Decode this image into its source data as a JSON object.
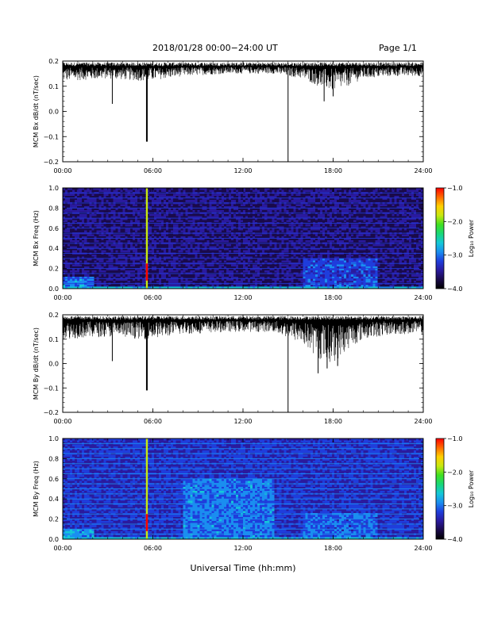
{
  "header": {
    "title": "2018/01/28  00:00−24:00 UT",
    "page": "Page 1/1"
  },
  "footer": {
    "xlabel": "Universal Time (hh:mm)"
  },
  "colors": {
    "trace": "#000000",
    "colormap": [
      "#000000",
      "#1a0a4a",
      "#2a1a9e",
      "#1f3ddc",
      "#1a8ef0",
      "#14c8d8",
      "#18d878",
      "#40e020",
      "#c8e810",
      "#ffd000",
      "#ff6a00",
      "#ff0000"
    ]
  },
  "chart_data": [
    {
      "type": "line",
      "ylabel": "MCM Bx dB/dt (nT/sec)",
      "ylim": [
        -0.2,
        0.2
      ],
      "yticks": [
        "0.2",
        "0.1",
        "0.0",
        "−0.1",
        "−0.2"
      ],
      "ytick_values": [
        0.2,
        0.1,
        0.0,
        -0.1,
        -0.2
      ],
      "xlim": [
        0,
        24
      ],
      "xticks": [
        "00:00",
        "06:00",
        "12:00",
        "18:00",
        "24:00"
      ],
      "baseline": 0.18,
      "noise_envelope": [
        {
          "x": 0,
          "low": 0.12
        },
        {
          "x": 3,
          "low": 0.13
        },
        {
          "x": 5.5,
          "low": 0.12
        },
        {
          "x": 8,
          "low": 0.14
        },
        {
          "x": 11,
          "low": 0.15
        },
        {
          "x": 14,
          "low": 0.15
        },
        {
          "x": 16,
          "low": 0.13
        },
        {
          "x": 17,
          "low": 0.1
        },
        {
          "x": 18,
          "low": 0.08
        },
        {
          "x": 19,
          "low": 0.1
        },
        {
          "x": 20,
          "low": 0.13
        },
        {
          "x": 22,
          "low": 0.14
        },
        {
          "x": 24,
          "low": 0.14
        }
      ],
      "spikes": [
        {
          "x": 3.3,
          "y": 0.03
        },
        {
          "x": 5.6,
          "y": -0.12
        },
        {
          "x": 15.0,
          "y": -0.2
        },
        {
          "x": 17.4,
          "y": 0.04
        },
        {
          "x": 18.0,
          "y": 0.06
        }
      ]
    },
    {
      "type": "heatmap",
      "ylabel": "MCM Bx Freq (Hz)",
      "ylim": [
        0.0,
        1.0
      ],
      "yticks": [
        "1.0",
        "0.8",
        "0.6",
        "0.4",
        "0.2",
        "0.0"
      ],
      "ytick_values": [
        1.0,
        0.8,
        0.6,
        0.4,
        0.2,
        0.0
      ],
      "xlim": [
        0,
        24
      ],
      "xticks": [
        "00:00",
        "06:00",
        "12:00",
        "18:00",
        "24:00"
      ],
      "colorbar": {
        "label": "Log₁₀ Power",
        "range": [
          -4.0,
          -1.0
        ],
        "ticks": [
          "−1.0",
          "−2.0",
          "−3.0",
          "−4.0"
        ],
        "tick_values": [
          -1.0,
          -2.0,
          -3.0,
          -4.0
        ]
      },
      "background_level": -3.6,
      "harmonic_lines_hz": [
        0.05,
        0.1,
        0.15,
        0.2,
        0.25,
        0.3,
        0.35,
        0.4,
        0.45,
        0.5,
        0.55,
        0.6,
        0.65,
        0.7,
        0.75,
        0.8,
        0.85,
        0.9,
        0.95,
        1.0
      ],
      "harmonic_level": -3.2,
      "broadband_event": {
        "x": 5.6,
        "level": -1.8
      },
      "low_freq_enhancement": [
        {
          "x0": 0,
          "x1": 2,
          "fmax": 0.12,
          "level": -3.0
        },
        {
          "x0": 16,
          "x1": 21,
          "fmax": 0.3,
          "level": -3.2
        }
      ]
    },
    {
      "type": "line",
      "ylabel": "MCM By dB/dt (nT/sec)",
      "ylim": [
        -0.2,
        0.2
      ],
      "yticks": [
        "0.2",
        "0.1",
        "0.0",
        "−0.1",
        "−0.2"
      ],
      "ytick_values": [
        0.2,
        0.1,
        0.0,
        -0.1,
        -0.2
      ],
      "xlim": [
        0,
        24
      ],
      "xticks": [
        "00:00",
        "06:00",
        "12:00",
        "18:00",
        "24:00"
      ],
      "baseline": 0.18,
      "noise_envelope": [
        {
          "x": 0,
          "low": 0.1
        },
        {
          "x": 3,
          "low": 0.11
        },
        {
          "x": 5.5,
          "low": 0.1
        },
        {
          "x": 8,
          "low": 0.12
        },
        {
          "x": 11,
          "low": 0.13
        },
        {
          "x": 14,
          "low": 0.13
        },
        {
          "x": 16,
          "low": 0.08
        },
        {
          "x": 17,
          "low": 0.02
        },
        {
          "x": 18,
          "low": 0.0
        },
        {
          "x": 19,
          "low": 0.06
        },
        {
          "x": 20,
          "low": 0.1
        },
        {
          "x": 22,
          "low": 0.12
        },
        {
          "x": 24,
          "low": 0.12
        }
      ],
      "spikes": [
        {
          "x": 3.3,
          "y": 0.01
        },
        {
          "x": 5.6,
          "y": -0.11
        },
        {
          "x": 15.0,
          "y": -0.2
        },
        {
          "x": 17.0,
          "y": -0.04
        },
        {
          "x": 17.6,
          "y": -0.02
        },
        {
          "x": 18.3,
          "y": -0.01
        }
      ]
    },
    {
      "type": "heatmap",
      "ylabel": "MCM By Freq (Hz)",
      "ylim": [
        0.0,
        1.0
      ],
      "yticks": [
        "1.0",
        "0.8",
        "0.6",
        "0.4",
        "0.2",
        "0.0"
      ],
      "ytick_values": [
        1.0,
        0.8,
        0.6,
        0.4,
        0.2,
        0.0
      ],
      "xlim": [
        0,
        24
      ],
      "xticks": [
        "00:00",
        "06:00",
        "12:00",
        "18:00",
        "24:00"
      ],
      "colorbar": {
        "label": "Log₁₀ Power",
        "range": [
          -4.0,
          -1.0
        ],
        "ticks": [
          "−1.0",
          "−2.0",
          "−3.0",
          "−4.0"
        ],
        "tick_values": [
          -1.0,
          -2.0,
          -3.0,
          -4.0
        ]
      },
      "background_level": -3.3,
      "harmonic_lines_hz": [
        0.05,
        0.1,
        0.15,
        0.2,
        0.25,
        0.3,
        0.35,
        0.4,
        0.45,
        0.5,
        0.55,
        0.6,
        0.65,
        0.7,
        0.75,
        0.8,
        0.85,
        0.9,
        0.95,
        1.0
      ],
      "harmonic_level": -3.0,
      "broadband_event": {
        "x": 5.6,
        "level": -1.8
      },
      "low_freq_enhancement": [
        {
          "x0": 0,
          "x1": 2,
          "fmax": 0.1,
          "level": -2.9
        },
        {
          "x0": 8,
          "x1": 14,
          "fmax": 0.6,
          "level": -3.0
        },
        {
          "x0": 16,
          "x1": 21,
          "fmax": 0.25,
          "level": -3.1
        }
      ]
    }
  ]
}
